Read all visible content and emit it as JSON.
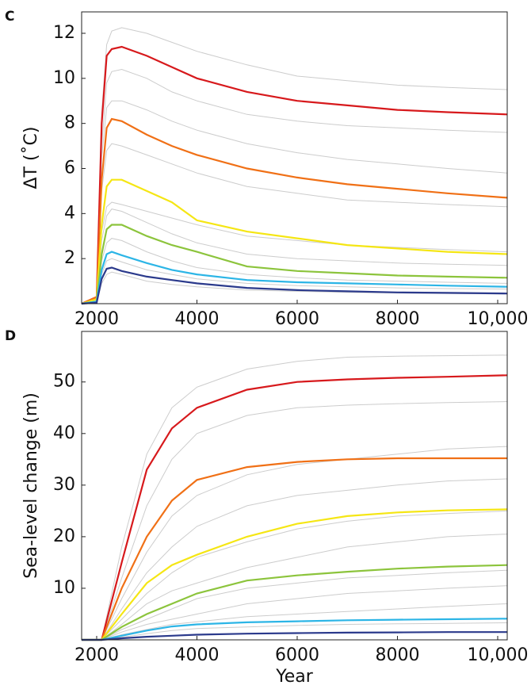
{
  "chart_data": [
    {
      "type": "line",
      "panel_label": "C",
      "y_label": "ΔT (˚C)",
      "x": [
        1700,
        2000,
        2100,
        2200,
        2300,
        2500,
        3000,
        3500,
        4000,
        5000,
        6000,
        7000,
        8000,
        9000,
        10190
      ],
      "xlim": [
        1700,
        10190
      ],
      "xticks": [
        2000,
        4000,
        6000,
        8000,
        {
          "value": 10000,
          "label": "10,000"
        }
      ],
      "ylim": [
        0,
        12.95
      ],
      "yticks": [
        2,
        4,
        6,
        8,
        10,
        12
      ],
      "series": [
        {
          "color": "#cccccc",
          "values": [
            0,
            0.3,
            8.5,
            11.5,
            12.1,
            12.25,
            12.0,
            11.6,
            11.2,
            10.6,
            10.1,
            9.9,
            9.7,
            9.6,
            9.5
          ]
        },
        {
          "color": "#cccccc",
          "values": [
            0,
            0.3,
            7,
            9.8,
            10.3,
            10.4,
            10.0,
            9.4,
            9.0,
            8.4,
            8.1,
            7.9,
            7.8,
            7.7,
            7.6
          ]
        },
        {
          "color": "#cccccc",
          "values": [
            0,
            0.3,
            6.5,
            8.7,
            9.0,
            9.0,
            8.6,
            8.1,
            7.7,
            7.1,
            6.7,
            6.4,
            6.2,
            6.0,
            5.8
          ]
        },
        {
          "color": "#cccccc",
          "values": [
            0,
            0.2,
            5,
            6.8,
            7.1,
            7.0,
            6.6,
            6.2,
            5.8,
            5.2,
            4.9,
            4.6,
            4.5,
            4.4,
            4.3
          ]
        },
        {
          "color": "#cccccc",
          "values": [
            0,
            0.2,
            3.2,
            4.3,
            4.5,
            4.4,
            4.1,
            3.8,
            3.5,
            3.0,
            2.8,
            2.6,
            2.5,
            2.4,
            2.3
          ]
        },
        {
          "color": "#cccccc",
          "values": [
            0,
            0.1,
            2.8,
            3.9,
            4.2,
            4.1,
            3.6,
            3.1,
            2.7,
            2.2,
            2.0,
            1.9,
            1.8,
            1.75,
            1.7
          ]
        },
        {
          "color": "#cccccc",
          "values": [
            0,
            0.1,
            1.9,
            2.7,
            2.9,
            2.8,
            2.3,
            1.9,
            1.6,
            1.3,
            1.15,
            1.05,
            1.0,
            0.95,
            0.9
          ]
        },
        {
          "color": "#cccccc",
          "values": [
            0,
            0.05,
            1.3,
            1.9,
            2.0,
            1.85,
            1.5,
            1.3,
            1.1,
            0.9,
            0.8,
            0.75,
            0.7,
            0.67,
            0.65
          ]
        },
        {
          "color": "#cccccc",
          "values": [
            0,
            0.05,
            0.9,
            1.3,
            1.4,
            1.3,
            1.0,
            0.85,
            0.75,
            0.6,
            0.55,
            0.5,
            0.47,
            0.45,
            0.43
          ]
        },
        {
          "color": "#d7191c",
          "values": [
            0,
            0.3,
            8,
            11,
            11.3,
            11.4,
            11.0,
            10.5,
            10.0,
            9.4,
            9.0,
            8.8,
            8.6,
            8.5,
            8.4
          ]
        },
        {
          "color": "#f07016",
          "values": [
            0,
            0.3,
            5.5,
            7.8,
            8.2,
            8.1,
            7.5,
            7.0,
            6.6,
            6.0,
            5.6,
            5.3,
            5.1,
            4.9,
            4.7
          ]
        },
        {
          "color": "#f5e614",
          "values": [
            0,
            0.2,
            3.5,
            5.2,
            5.5,
            5.5,
            5.0,
            4.5,
            3.7,
            3.2,
            2.9,
            2.6,
            2.45,
            2.3,
            2.2
          ]
        },
        {
          "color": "#8cc43c",
          "values": [
            0,
            0.1,
            2.2,
            3.3,
            3.5,
            3.5,
            3.0,
            2.6,
            2.3,
            1.65,
            1.45,
            1.35,
            1.25,
            1.2,
            1.15
          ]
        },
        {
          "color": "#2cb5e6",
          "values": [
            0,
            0.1,
            1.5,
            2.2,
            2.3,
            2.15,
            1.8,
            1.5,
            1.3,
            1.05,
            0.95,
            0.9,
            0.85,
            0.8,
            0.75
          ]
        },
        {
          "color": "#2b3a8c",
          "values": [
            0,
            0.05,
            1.1,
            1.55,
            1.6,
            1.45,
            1.2,
            1.05,
            0.9,
            0.7,
            0.6,
            0.55,
            0.5,
            0.48,
            0.45
          ]
        }
      ]
    },
    {
      "type": "line",
      "panel_label": "D",
      "y_label": "Sea-level change (m)",
      "x_label": "Year",
      "x": [
        1700,
        2000,
        2100,
        2500,
        3000,
        3500,
        4000,
        5000,
        6000,
        7000,
        8000,
        9000,
        10190
      ],
      "xlim": [
        1700,
        10190
      ],
      "xticks": [
        2000,
        4000,
        6000,
        8000,
        {
          "value": 10000,
          "label": "10,000"
        }
      ],
      "ylim": [
        0,
        59.8
      ],
      "yticks": [
        10,
        20,
        30,
        40,
        50
      ],
      "series": [
        {
          "color": "#cccccc",
          "values": [
            0,
            0,
            0,
            18,
            36,
            45,
            49,
            52.5,
            54,
            54.8,
            55,
            55.1,
            55.2
          ]
        },
        {
          "color": "#cccccc",
          "values": [
            0,
            0,
            0,
            12,
            26,
            35,
            40,
            43.5,
            45,
            45.5,
            45.8,
            46,
            46.2
          ]
        },
        {
          "color": "#cccccc",
          "values": [
            0,
            0,
            0,
            8,
            17,
            24,
            28,
            32,
            34,
            35,
            36,
            37,
            37.5
          ]
        },
        {
          "color": "#cccccc",
          "values": [
            0,
            0,
            0,
            6,
            13,
            18,
            22,
            26,
            28,
            29,
            30,
            30.8,
            31.2
          ]
        },
        {
          "color": "#cccccc",
          "values": [
            0,
            0,
            0,
            4,
            9,
            13,
            16,
            19,
            21.5,
            23,
            24,
            24.5,
            25
          ]
        },
        {
          "color": "#cccccc",
          "values": [
            0,
            0,
            0,
            3,
            7,
            9.5,
            11,
            14,
            16,
            18,
            19,
            20,
            20.5
          ]
        },
        {
          "color": "#cccccc",
          "values": [
            0,
            0,
            0,
            2,
            4,
            6,
            8,
            10,
            11,
            12,
            12.5,
            13,
            13.5
          ]
        },
        {
          "color": "#cccccc",
          "values": [
            0,
            0,
            0,
            1.5,
            3,
            4,
            5,
            7,
            8,
            9,
            9.5,
            10,
            10.5
          ]
        },
        {
          "color": "#cccccc",
          "values": [
            0,
            0,
            0,
            1,
            2,
            3,
            3.5,
            4.5,
            5,
            5.5,
            6,
            6.5,
            7
          ]
        },
        {
          "color": "#cccccc",
          "values": [
            0,
            0,
            0,
            0.5,
            1.2,
            1.8,
            2.2,
            2.5,
            2.8,
            3,
            3.1,
            3.2,
            3.3
          ]
        },
        {
          "color": "#d7191c",
          "values": [
            0,
            0,
            0,
            15,
            33,
            41,
            45,
            48.5,
            50,
            50.5,
            50.8,
            51,
            51.3
          ]
        },
        {
          "color": "#f07016",
          "values": [
            0,
            0,
            0,
            10,
            20,
            27,
            31,
            33.5,
            34.5,
            35,
            35.2,
            35.2,
            35.2
          ]
        },
        {
          "color": "#f5e614",
          "values": [
            0,
            0,
            0,
            5,
            11,
            14.5,
            16.5,
            20,
            22.5,
            24,
            24.7,
            25.1,
            25.3
          ]
        },
        {
          "color": "#8cc43c",
          "values": [
            0,
            0,
            0,
            2.5,
            5,
            7,
            9,
            11.5,
            12.5,
            13.2,
            13.8,
            14.2,
            14.5
          ]
        },
        {
          "color": "#2cb5e6",
          "values": [
            0,
            0,
            0,
            0.8,
            1.8,
            2.6,
            3.0,
            3.4,
            3.6,
            3.8,
            3.9,
            4.0,
            4.1
          ]
        },
        {
          "color": "#2b3a8c",
          "values": [
            0,
            0,
            0,
            0.3,
            0.6,
            0.8,
            1.0,
            1.2,
            1.3,
            1.4,
            1.45,
            1.5,
            1.5
          ]
        }
      ]
    }
  ]
}
